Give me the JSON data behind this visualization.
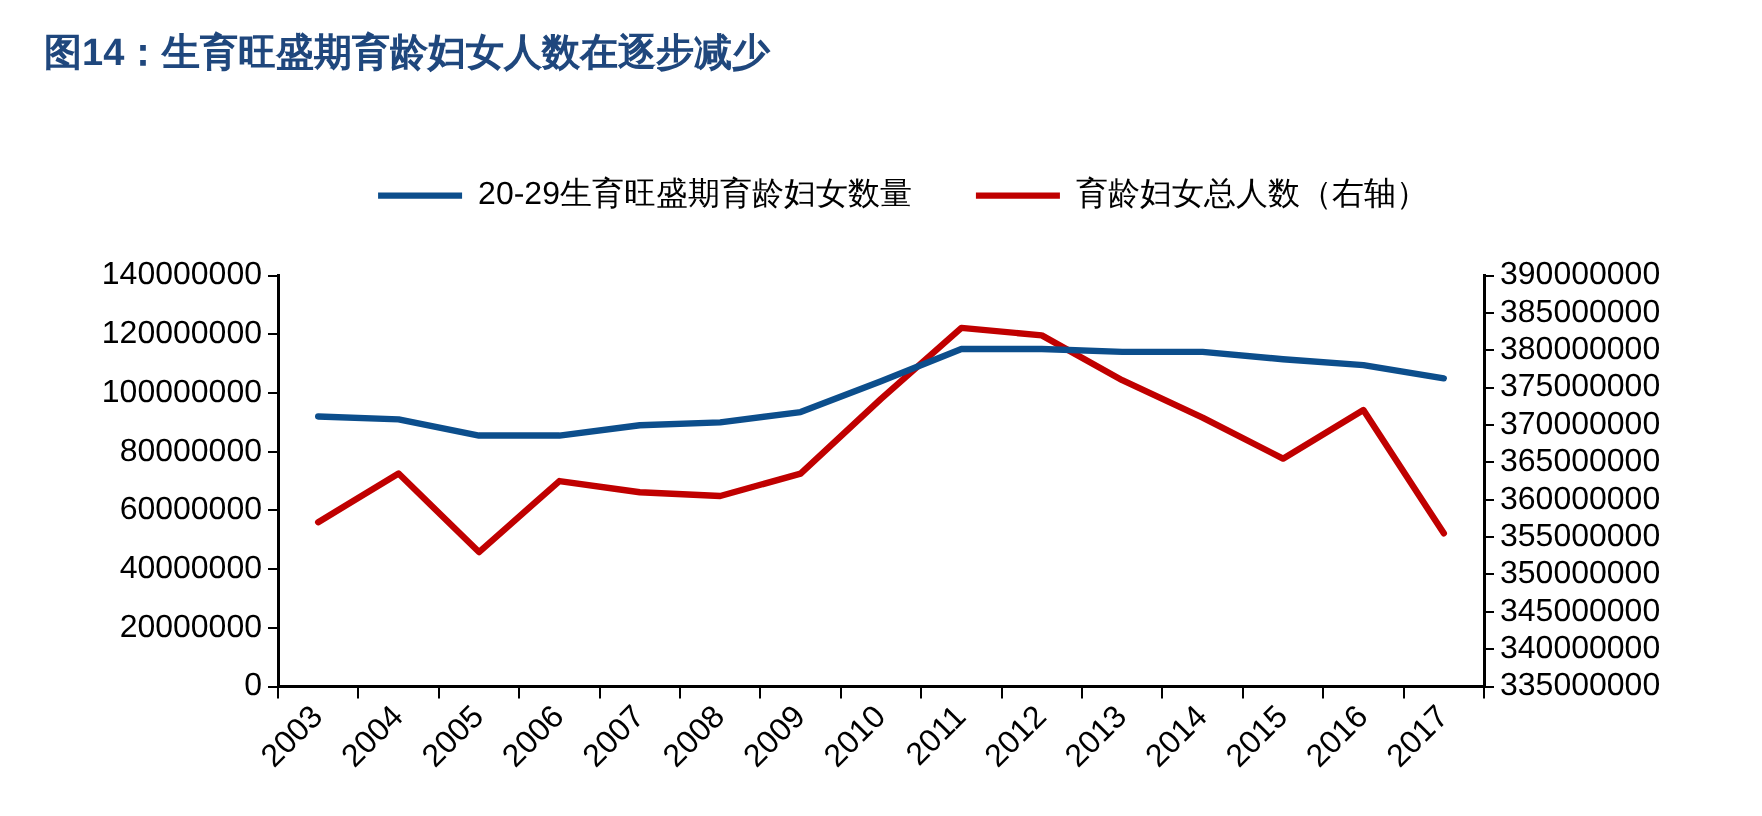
{
  "chart_data": {
    "type": "line",
    "title": "图14：生育旺盛期育龄妇女人数在逐步减少",
    "categories": [
      "2003",
      "2004",
      "2005",
      "2006",
      "2007",
      "2008",
      "2009",
      "2010",
      "2011",
      "2012",
      "2013",
      "2014",
      "2015",
      "2016",
      "2017"
    ],
    "series": [
      {
        "name": "20-29生育旺盛期育龄妇女数量",
        "color": "#0c4e8c",
        "values": [
          92000000,
          91000000,
          85500000,
          85500000,
          89000000,
          90000000,
          93500000,
          104000000,
          115000000,
          115000000,
          114000000,
          114000000,
          111500000,
          109500000,
          105000000
        ]
      },
      {
        "name": "育龄妇女总人数（右轴）",
        "color": "#c00000",
        "axis": "y2",
        "values": [
          357000000,
          363500000,
          353000000,
          362500000,
          361000000,
          360500000,
          363500000,
          373500000,
          383000000,
          382000000,
          376000000,
          371000000,
          365500000,
          372000000,
          355500000
        ]
      }
    ],
    "ylim": [
      0,
      140000000
    ],
    "yticks": [
      0,
      20000000,
      40000000,
      60000000,
      80000000,
      100000000,
      120000000,
      140000000
    ],
    "y2lim": [
      335000000,
      390000000
    ],
    "y2ticks": [
      335000000,
      340000000,
      345000000,
      350000000,
      355000000,
      360000000,
      365000000,
      370000000,
      375000000,
      380000000,
      385000000,
      390000000
    ],
    "grid": false,
    "legend": "top",
    "marker": "none"
  }
}
